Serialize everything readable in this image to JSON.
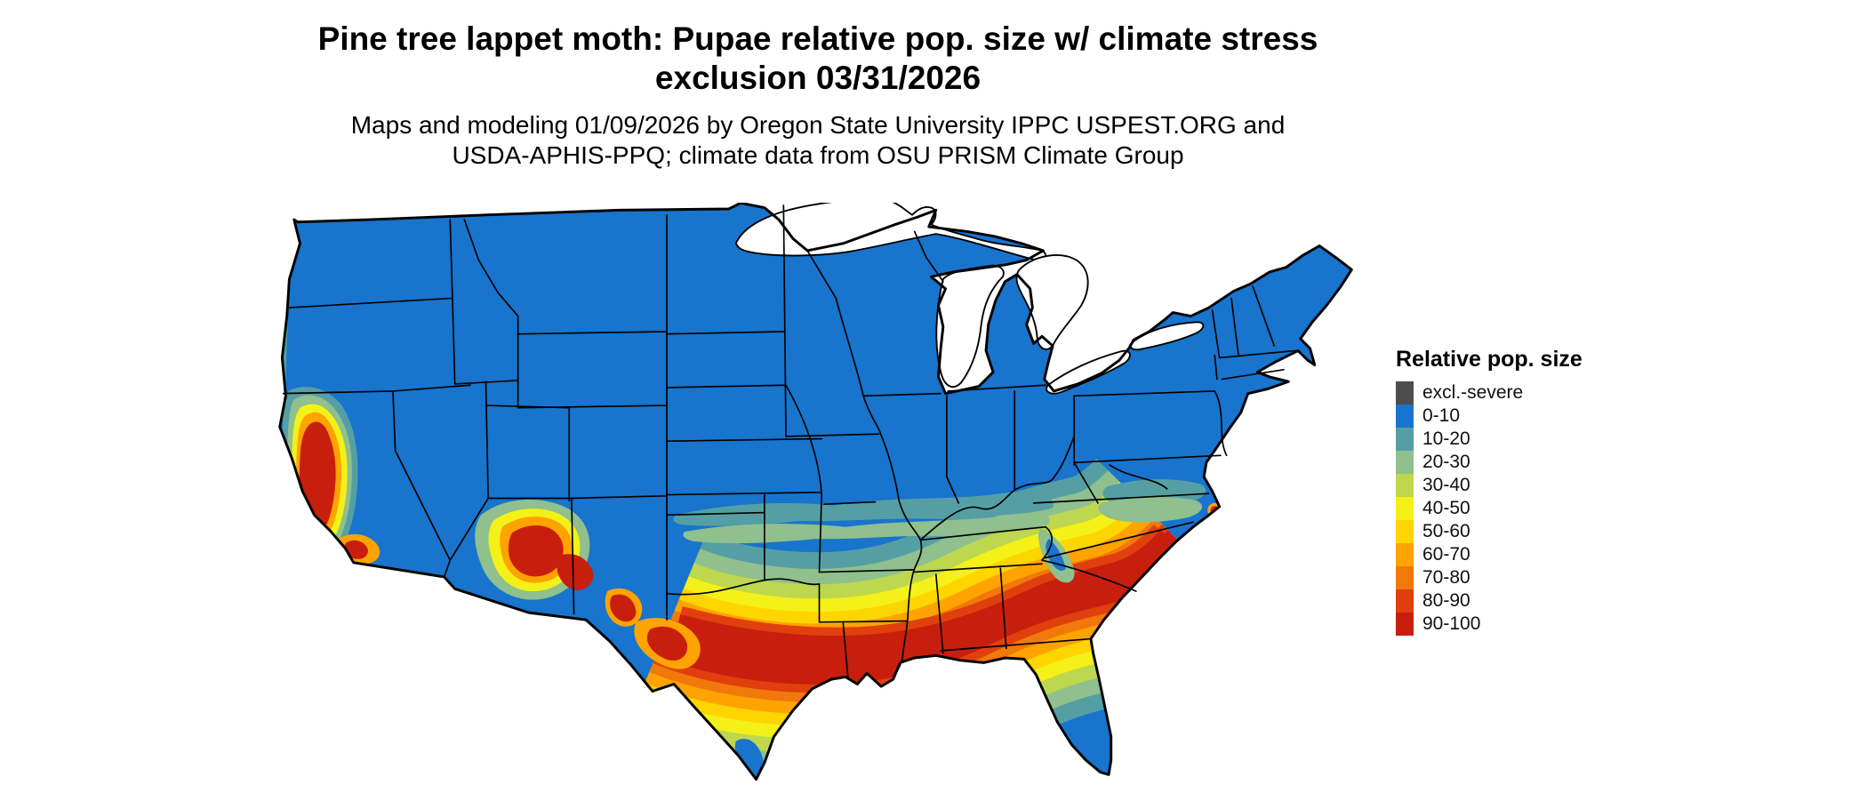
{
  "header": {
    "title_line1": "Pine tree lappet moth: Pupae relative pop. size w/ climate stress",
    "title_line2": "exclusion 03/31/2026",
    "subtitle_line1": "Maps and modeling 01/09/2026 by Oregon State University IPPC USPEST.ORG and",
    "subtitle_line2": "USDA-APHIS-PPQ; climate data from OSU PRISM Climate Group"
  },
  "legend": {
    "title": "Relative pop. size",
    "items": [
      {
        "label": "excl.-severe",
        "color": "#4D4D4D"
      },
      {
        "label": "0-10",
        "color": "#1874CD"
      },
      {
        "label": "10-20",
        "color": "#559FA4"
      },
      {
        "label": "20-30",
        "color": "#8FC08D"
      },
      {
        "label": "30-40",
        "color": "#BED74E"
      },
      {
        "label": "40-50",
        "color": "#F4F118"
      },
      {
        "label": "50-60",
        "color": "#FFD500"
      },
      {
        "label": "60-70",
        "color": "#FFA300"
      },
      {
        "label": "70-80",
        "color": "#F1780A"
      },
      {
        "label": "80-90",
        "color": "#E0400D"
      },
      {
        "label": "90-100",
        "color": "#C81E0E"
      }
    ]
  },
  "map": {
    "border_color": "#000000",
    "water_color": "#FFFFFF"
  }
}
